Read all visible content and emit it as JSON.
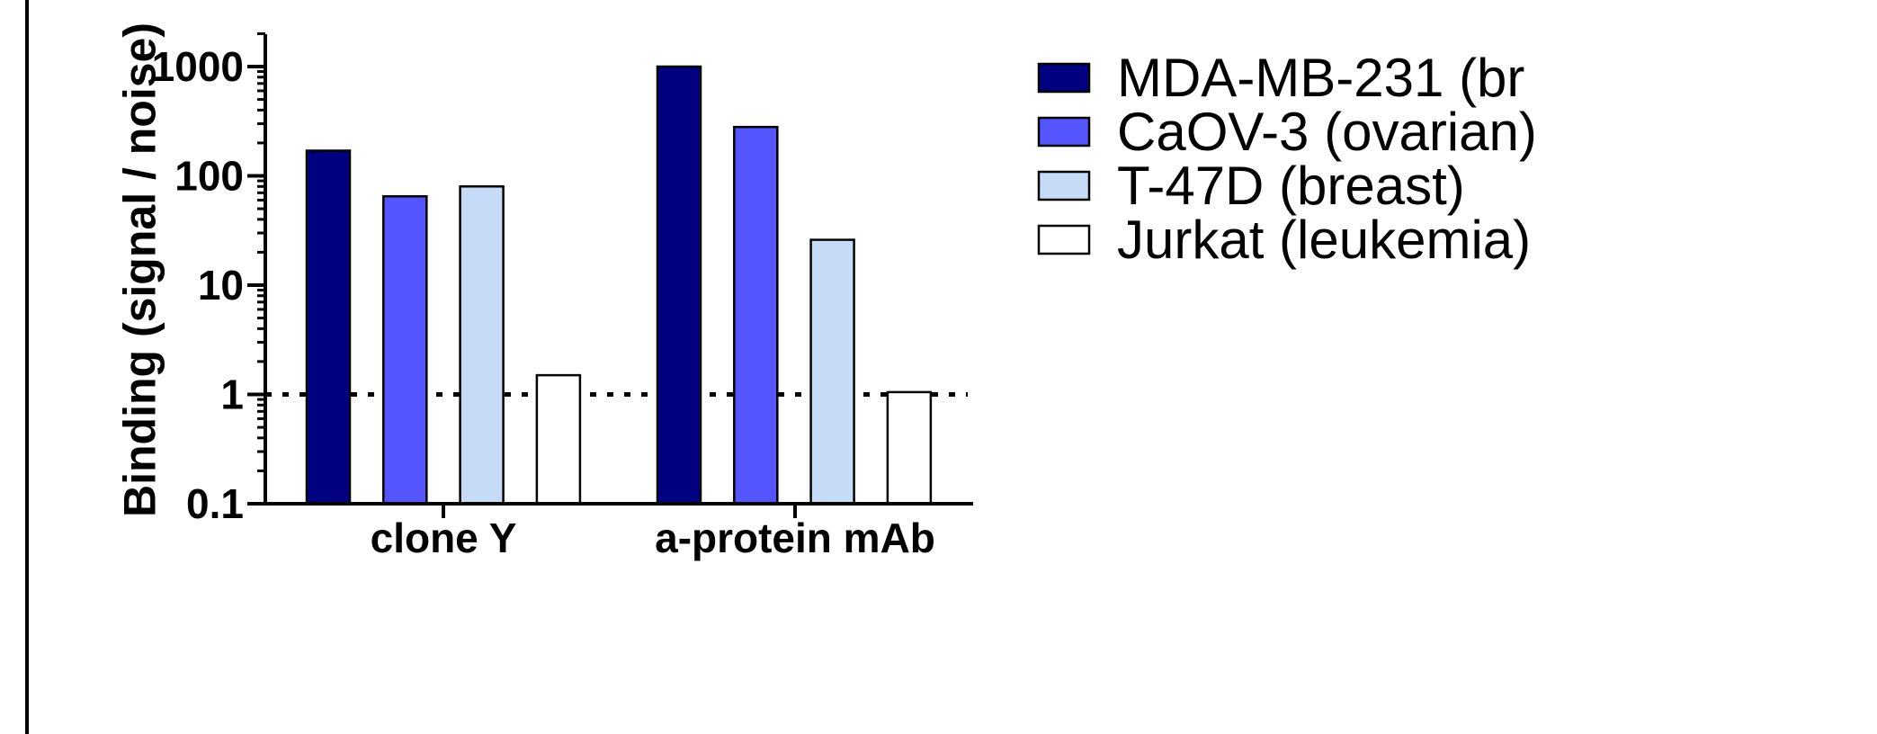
{
  "chart_data": {
    "type": "bar",
    "scale": "log",
    "ylabel": "Binding (signal / noise)",
    "xlabel": "",
    "ylim": [
      0.1,
      2000
    ],
    "yticks": [
      0.1,
      1,
      10,
      100,
      1000
    ],
    "ytick_labels": [
      "0.1",
      "1",
      "10",
      "100",
      "1000"
    ],
    "categories": [
      "clone Y",
      "a-protein mAb"
    ],
    "reference_line": {
      "value": 1,
      "style": "dotted"
    },
    "legend_position": "right",
    "series": [
      {
        "name": "MDA-MB-231 (br",
        "color": "#000080",
        "values": [
          170,
          1000
        ]
      },
      {
        "name": "CaOV-3 (ovarian)",
        "color": "#5555ff",
        "values": [
          65,
          280
        ]
      },
      {
        "name": "T-47D (breast)",
        "color": "#c6dcf6",
        "values": [
          80,
          26
        ]
      },
      {
        "name": "Jurkat (leukemia)",
        "color": "#ffffff",
        "values": [
          1.5,
          1.05
        ]
      }
    ]
  }
}
